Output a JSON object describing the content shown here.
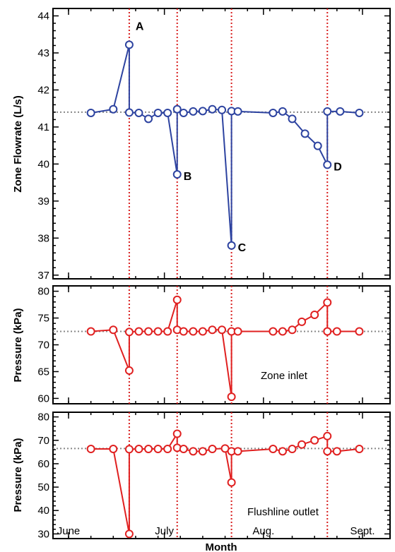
{
  "colors": {
    "flow": "#2d43a0",
    "pressure": "#e02020",
    "event_line": "#d81e1e",
    "baseline": "#888888",
    "frame": "#000000"
  },
  "chart_data": [
    {
      "type": "line",
      "ylabel": "Zone Flowrate (L/s)",
      "xlabel": "",
      "ylim": [
        36.9,
        44.2
      ],
      "yticks": [
        37,
        38,
        39,
        40,
        41,
        42,
        43,
        44
      ],
      "baseline": 41.4,
      "grid": false,
      "series": [
        {
          "points": [
            {
              "x": "2015-06-08",
              "y": 41.38
            },
            {
              "x": "2015-06-15",
              "y": 41.48
            },
            {
              "x": "2015-06-20",
              "y": 43.22
            },
            {
              "x": "2015-06-20",
              "y": 41.39
            },
            {
              "x": "2015-06-23",
              "y": 41.38
            },
            {
              "x": "2015-06-26",
              "y": 41.22
            },
            {
              "x": "2015-06-29",
              "y": 41.38
            },
            {
              "x": "2015-07-02",
              "y": 41.38
            },
            {
              "x": "2015-07-05",
              "y": 39.72
            },
            {
              "x": "2015-07-05",
              "y": 41.48
            },
            {
              "x": "2015-07-07",
              "y": 41.38
            },
            {
              "x": "2015-07-10",
              "y": 41.42
            },
            {
              "x": "2015-07-13",
              "y": 41.43
            },
            {
              "x": "2015-07-16",
              "y": 41.48
            },
            {
              "x": "2015-07-19",
              "y": 41.46
            },
            {
              "x": "2015-07-22",
              "y": 37.8
            },
            {
              "x": "2015-07-22",
              "y": 41.43
            },
            {
              "x": "2015-07-24",
              "y": 41.42
            },
            {
              "x": "2015-08-04",
              "y": 41.38
            },
            {
              "x": "2015-08-07",
              "y": 41.42
            },
            {
              "x": "2015-08-10",
              "y": 41.22
            },
            {
              "x": "2015-08-14",
              "y": 40.82
            },
            {
              "x": "2015-08-18",
              "y": 40.49
            },
            {
              "x": "2015-08-21",
              "y": 39.98
            },
            {
              "x": "2015-08-21",
              "y": 41.42
            },
            {
              "x": "2015-08-25",
              "y": 41.42
            },
            {
              "x": "2015-08-31",
              "y": 41.38
            }
          ]
        }
      ],
      "labels": [
        {
          "text": "A",
          "x": "2015-06-20",
          "y": 43.22
        },
        {
          "text": "B",
          "x": "2015-07-05",
          "y": 39.72
        },
        {
          "text": "C",
          "x": "2015-07-22",
          "y": 37.8
        },
        {
          "text": "D",
          "x": "2015-08-21",
          "y": 39.98
        }
      ]
    },
    {
      "type": "line",
      "ylabel": "Pressure (kPa)",
      "xlabel": "",
      "ylim": [
        59,
        81
      ],
      "yticks": [
        60,
        65,
        70,
        75,
        80
      ],
      "baseline": 72.5,
      "grid": false,
      "annotation": "Zone inlet",
      "series": [
        {
          "points": [
            {
              "x": "2015-06-08",
              "y": 72.5
            },
            {
              "x": "2015-06-15",
              "y": 72.8
            },
            {
              "x": "2015-06-20",
              "y": 65.2
            },
            {
              "x": "2015-06-20",
              "y": 72.4
            },
            {
              "x": "2015-06-23",
              "y": 72.5
            },
            {
              "x": "2015-06-26",
              "y": 72.5
            },
            {
              "x": "2015-06-29",
              "y": 72.5
            },
            {
              "x": "2015-07-02",
              "y": 72.5
            },
            {
              "x": "2015-07-05",
              "y": 78.4
            },
            {
              "x": "2015-07-05",
              "y": 72.8
            },
            {
              "x": "2015-07-07",
              "y": 72.5
            },
            {
              "x": "2015-07-10",
              "y": 72.5
            },
            {
              "x": "2015-07-13",
              "y": 72.5
            },
            {
              "x": "2015-07-16",
              "y": 72.8
            },
            {
              "x": "2015-07-19",
              "y": 72.8
            },
            {
              "x": "2015-07-22",
              "y": 60.3
            },
            {
              "x": "2015-07-22",
              "y": 72.5
            },
            {
              "x": "2015-07-24",
              "y": 72.5
            },
            {
              "x": "2015-08-04",
              "y": 72.5
            },
            {
              "x": "2015-08-07",
              "y": 72.5
            },
            {
              "x": "2015-08-10",
              "y": 72.8
            },
            {
              "x": "2015-08-13",
              "y": 74.3
            },
            {
              "x": "2015-08-17",
              "y": 75.6
            },
            {
              "x": "2015-08-21",
              "y": 77.9
            },
            {
              "x": "2015-08-21",
              "y": 72.5
            },
            {
              "x": "2015-08-24",
              "y": 72.5
            },
            {
              "x": "2015-08-31",
              "y": 72.5
            }
          ]
        }
      ]
    },
    {
      "type": "line",
      "ylabel": "Pressure (kPa)",
      "xlabel": "Month",
      "ylim": [
        28,
        82
      ],
      "yticks": [
        30,
        40,
        50,
        60,
        70,
        80
      ],
      "xticks": [
        "June",
        "July",
        "Aug.",
        "Sept."
      ],
      "baseline": 66.5,
      "grid": false,
      "annotation": "Flushline outlet",
      "series": [
        {
          "points": [
            {
              "x": "2015-06-08",
              "y": 66.3
            },
            {
              "x": "2015-06-15",
              "y": 66.3
            },
            {
              "x": "2015-06-20",
              "y": 30.0
            },
            {
              "x": "2015-06-20",
              "y": 66.2
            },
            {
              "x": "2015-06-23",
              "y": 66.3
            },
            {
              "x": "2015-06-26",
              "y": 66.3
            },
            {
              "x": "2015-06-29",
              "y": 66.3
            },
            {
              "x": "2015-07-02",
              "y": 66.3
            },
            {
              "x": "2015-07-05",
              "y": 72.8
            },
            {
              "x": "2015-07-05",
              "y": 66.8
            },
            {
              "x": "2015-07-07",
              "y": 66.3
            },
            {
              "x": "2015-07-10",
              "y": 65.3
            },
            {
              "x": "2015-07-13",
              "y": 65.3
            },
            {
              "x": "2015-07-16",
              "y": 66.3
            },
            {
              "x": "2015-07-20",
              "y": 66.5
            },
            {
              "x": "2015-07-22",
              "y": 52.0
            },
            {
              "x": "2015-07-22",
              "y": 65.3
            },
            {
              "x": "2015-07-24",
              "y": 65.3
            },
            {
              "x": "2015-08-04",
              "y": 66.3
            },
            {
              "x": "2015-08-07",
              "y": 65.3
            },
            {
              "x": "2015-08-10",
              "y": 66.3
            },
            {
              "x": "2015-08-13",
              "y": 68.2
            },
            {
              "x": "2015-08-17",
              "y": 70.0
            },
            {
              "x": "2015-08-21",
              "y": 71.8
            },
            {
              "x": "2015-08-21",
              "y": 65.3
            },
            {
              "x": "2015-08-24",
              "y": 65.3
            },
            {
              "x": "2015-08-31",
              "y": 66.3
            }
          ]
        }
      ]
    }
  ],
  "events": [
    "2015-06-20",
    "2015-07-05",
    "2015-07-22",
    "2015-08-21"
  ],
  "xlabel": "Month"
}
